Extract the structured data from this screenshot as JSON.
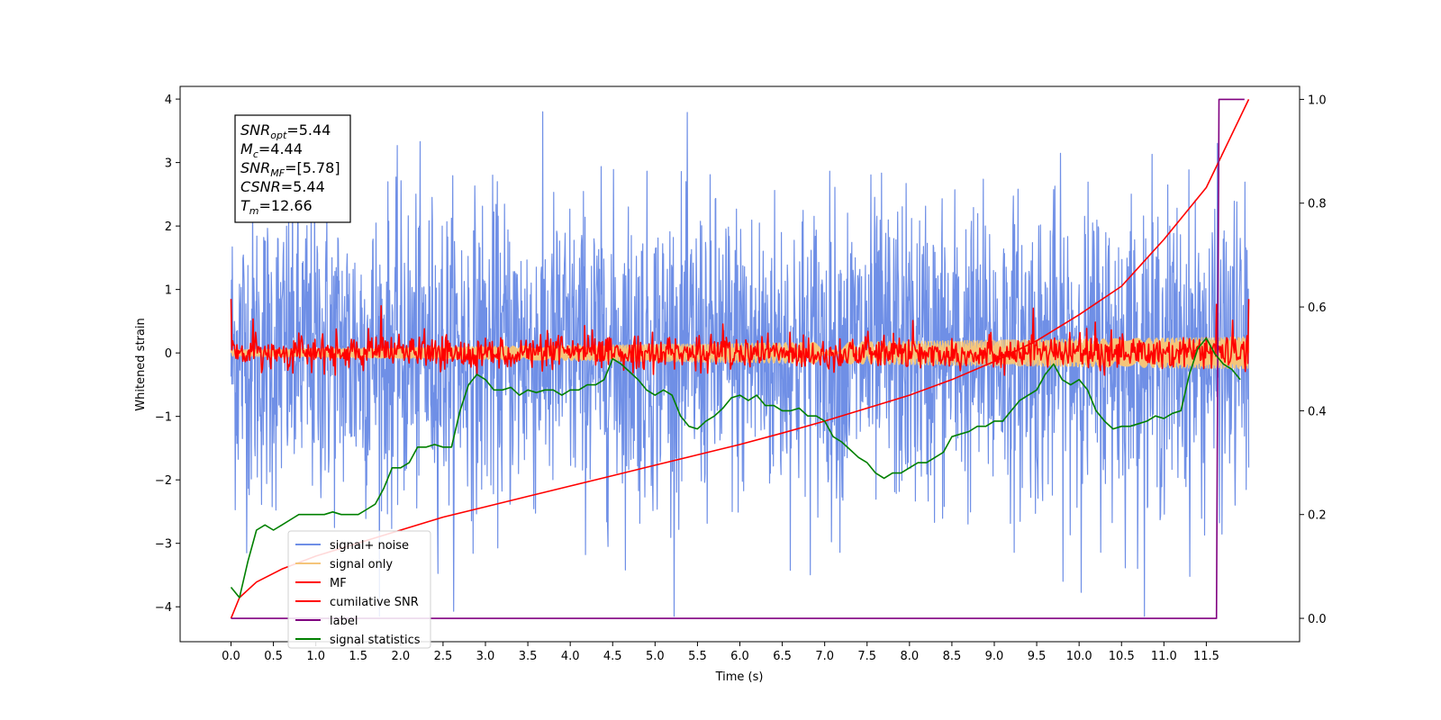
{
  "chart_data": {
    "type": "line",
    "title": "",
    "xlabel": "Time (s)",
    "ylabel": "Whitened strain",
    "xlim": [
      -0.6,
      12.6
    ],
    "ylim": [
      -4.55,
      4.2
    ],
    "y2lim": [
      -0.045,
      1.025
    ],
    "x_ticks": [
      "0.0",
      "0.5",
      "1.0",
      "1.5",
      "2.0",
      "2.5",
      "3.0",
      "3.5",
      "4.0",
      "4.5",
      "5.0",
      "5.5",
      "6.0",
      "6.5",
      "7.0",
      "7.5",
      "8.0",
      "8.5",
      "9.0",
      "9.5",
      "10.0",
      "10.5",
      "11.0",
      "11.5"
    ],
    "y_ticks": [
      "4",
      "3",
      "2",
      "1",
      "0",
      "−1",
      "−2",
      "−3",
      "−4"
    ],
    "y2_ticks": [
      "1.0",
      "0.8",
      "0.6",
      "0.4",
      "0.2",
      "0.0"
    ],
    "grid": false,
    "legend_position": "lower-left",
    "annotation": {
      "lines": [
        {
          "base": "SNR",
          "sub": "opt",
          "value": "=5.44"
        },
        {
          "base": "M",
          "sub": "c",
          "value": "=4.44"
        },
        {
          "base": "SNR",
          "sub": "MF",
          "value": "=[5.78]"
        },
        {
          "base": "CSNR",
          "sub": "",
          "value": "=5.44"
        },
        {
          "base": "T",
          "sub": "m",
          "value": "=12.66"
        }
      ]
    },
    "series": [
      {
        "name": "signal+ noise",
        "color": "#6f8fe6",
        "axis": "left",
        "kind": "noise",
        "t_range": [
          0.0,
          12.0
        ],
        "amplitude_std": 1.2,
        "y_range": [
          -4.15,
          3.8
        ]
      },
      {
        "name": "signal only",
        "color": "#f5c57a",
        "axis": "left",
        "kind": "chirp",
        "t_range": [
          0.0,
          12.0
        ],
        "amplitude_start": 0.05,
        "amplitude_end": 0.25
      },
      {
        "name": "MF",
        "color": "#ff0000",
        "axis": "left",
        "kind": "noise",
        "t_range": [
          0.0,
          12.0
        ],
        "amplitude_std": 0.13,
        "start_value": 1.0,
        "end_value": 1.0
      },
      {
        "name": "cumilative SNR",
        "color": "#ff0000",
        "axis": "right",
        "x": [
          0.0,
          0.1,
          0.3,
          0.6,
          1.0,
          1.5,
          2.0,
          2.5,
          3.0,
          3.5,
          4.0,
          4.5,
          5.0,
          5.5,
          6.0,
          6.5,
          7.0,
          7.5,
          8.0,
          8.5,
          9.0,
          9.5,
          10.0,
          10.5,
          11.0,
          11.5,
          12.0
        ],
        "y": [
          0.0,
          0.04,
          0.07,
          0.095,
          0.12,
          0.145,
          0.17,
          0.195,
          0.215,
          0.235,
          0.255,
          0.275,
          0.295,
          0.315,
          0.335,
          0.357,
          0.38,
          0.405,
          0.43,
          0.46,
          0.495,
          0.535,
          0.585,
          0.64,
          0.73,
          0.83,
          1.0
        ]
      },
      {
        "name": "label",
        "color": "#800080",
        "axis": "right",
        "x": [
          0.0,
          11.62,
          11.65,
          11.95
        ],
        "y": [
          0.0,
          0.0,
          1.0,
          1.0
        ]
      },
      {
        "name": "signal statistics",
        "color": "#008000",
        "axis": "right",
        "x": [
          0.0,
          0.1,
          0.2,
          0.3,
          0.4,
          0.5,
          0.6,
          0.7,
          0.8,
          0.9,
          1.0,
          1.1,
          1.2,
          1.3,
          1.4,
          1.5,
          1.6,
          1.7,
          1.8,
          1.9,
          2.0,
          2.1,
          2.2,
          2.3,
          2.4,
          2.5,
          2.6,
          2.7,
          2.8,
          2.9,
          3.0,
          3.1,
          3.2,
          3.3,
          3.4,
          3.5,
          3.6,
          3.7,
          3.8,
          3.9,
          4.0,
          4.1,
          4.2,
          4.3,
          4.4,
          4.5,
          4.6,
          4.7,
          4.8,
          4.9,
          5.0,
          5.1,
          5.2,
          5.3,
          5.4,
          5.5,
          5.6,
          5.7,
          5.8,
          5.9,
          6.0,
          6.1,
          6.2,
          6.3,
          6.4,
          6.5,
          6.6,
          6.7,
          6.8,
          6.9,
          7.0,
          7.1,
          7.2,
          7.3,
          7.4,
          7.5,
          7.6,
          7.7,
          7.8,
          7.9,
          8.0,
          8.1,
          8.2,
          8.3,
          8.4,
          8.5,
          8.6,
          8.7,
          8.8,
          8.9,
          9.0,
          9.1,
          9.2,
          9.3,
          9.4,
          9.5,
          9.6,
          9.7,
          9.8,
          9.9,
          10.0,
          10.1,
          10.2,
          10.3,
          10.4,
          10.5,
          10.6,
          10.7,
          10.8,
          10.9,
          11.0,
          11.1,
          11.2,
          11.3,
          11.4,
          11.5,
          11.6,
          11.7,
          11.8,
          11.9
        ],
        "y": [
          0.06,
          0.04,
          0.11,
          0.17,
          0.18,
          0.17,
          0.18,
          0.19,
          0.2,
          0.2,
          0.2,
          0.2,
          0.205,
          0.2,
          0.2,
          0.2,
          0.21,
          0.22,
          0.25,
          0.29,
          0.29,
          0.3,
          0.33,
          0.33,
          0.335,
          0.33,
          0.33,
          0.4,
          0.45,
          0.47,
          0.46,
          0.44,
          0.44,
          0.445,
          0.43,
          0.44,
          0.435,
          0.44,
          0.44,
          0.43,
          0.44,
          0.44,
          0.45,
          0.45,
          0.46,
          0.5,
          0.49,
          0.475,
          0.46,
          0.44,
          0.43,
          0.44,
          0.43,
          0.39,
          0.37,
          0.365,
          0.38,
          0.39,
          0.405,
          0.425,
          0.43,
          0.42,
          0.43,
          0.41,
          0.41,
          0.4,
          0.4,
          0.405,
          0.39,
          0.39,
          0.38,
          0.35,
          0.34,
          0.325,
          0.31,
          0.3,
          0.28,
          0.27,
          0.28,
          0.28,
          0.29,
          0.3,
          0.3,
          0.31,
          0.32,
          0.35,
          0.355,
          0.36,
          0.37,
          0.37,
          0.38,
          0.38,
          0.4,
          0.42,
          0.43,
          0.44,
          0.47,
          0.49,
          0.46,
          0.45,
          0.46,
          0.44,
          0.4,
          0.38,
          0.365,
          0.37,
          0.37,
          0.375,
          0.38,
          0.39,
          0.385,
          0.395,
          0.4,
          0.47,
          0.52,
          0.54,
          0.51,
          0.49,
          0.48,
          0.46
        ]
      }
    ]
  }
}
